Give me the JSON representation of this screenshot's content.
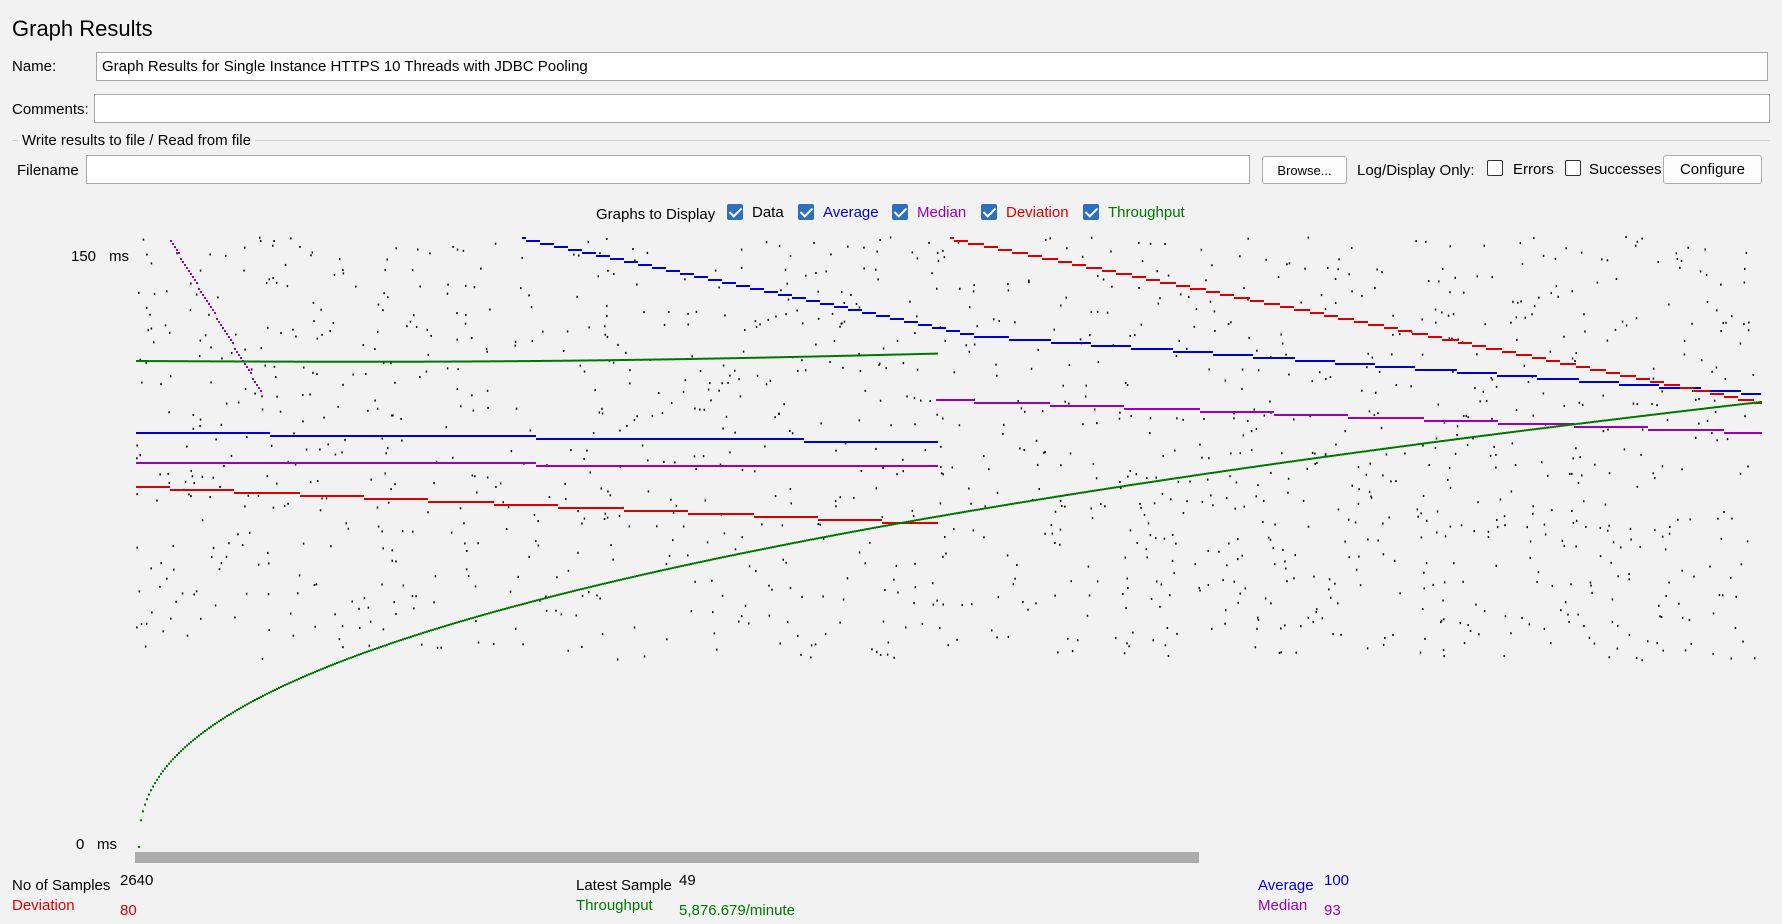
{
  "title": "Graph Results",
  "name_label": "Name:",
  "name_value": "Graph Results for Single Instance HTTPS 10 Threads with JDBC Pooling",
  "comments_label": "Comments:",
  "comments_value": "",
  "file_group_label": "Write results to file / Read from file",
  "filename_label": "Filename",
  "filename_value": "",
  "browse_label": "Browse...",
  "log_display_label": "Log/Display Only:",
  "errors_label": "Errors",
  "errors_checked": false,
  "successes_label": "Successes",
  "successes_checked": false,
  "configure_label": "Configure",
  "graphs_label": "Graphs to Display",
  "toggles": {
    "data": "Data",
    "average": "Average",
    "median": "Median",
    "deviation": "Deviation",
    "throughput": "Throughput"
  },
  "colors": {
    "data": "#000000",
    "average": "#0000dd",
    "median": "#9900bb",
    "deviation": "#dd0000",
    "throughput": "#007700"
  },
  "axis": {
    "y_top_value": "150",
    "y_top_unit": "ms",
    "y_bottom_value": "0",
    "y_bottom_unit": "ms"
  },
  "stats": {
    "samples_label": "No of Samples",
    "samples_value": "2640",
    "deviation_label": "Deviation",
    "deviation_value": "80",
    "latest_label": "Latest Sample",
    "latest_value": "49",
    "throughput_label": "Throughput",
    "throughput_value": "5,876.679/minute",
    "average_label": "Average",
    "average_value": "100",
    "median_label": "Median",
    "median_value": "93"
  }
}
